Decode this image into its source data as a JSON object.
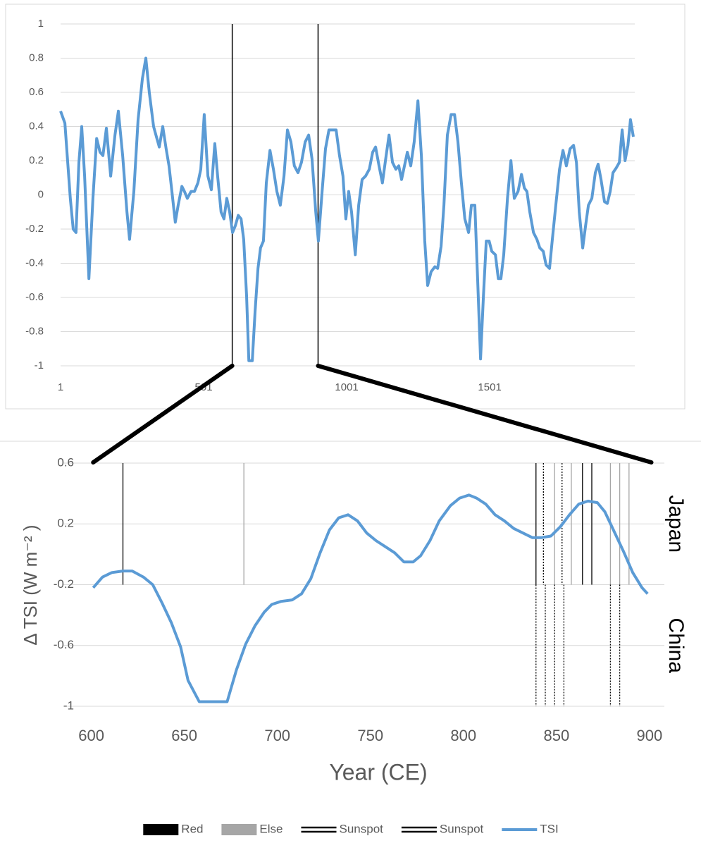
{
  "chart_data": [
    {
      "type": "line",
      "x": [
        1,
        16,
        35,
        45,
        55,
        65,
        75,
        85,
        100,
        114,
        127,
        139,
        149,
        161,
        176,
        191,
        203,
        218,
        233,
        242,
        257,
        272,
        287,
        299,
        311,
        326,
        336,
        346,
        358,
        370,
        380,
        390,
        402,
        412,
        425,
        434,
        444,
        457,
        469,
        481,
        491,
        503,
        516,
        528,
        540,
        550,
        562,
        572,
        582,
        592,
        602,
        612,
        622,
        632,
        641,
        651,
        659,
        671,
        681,
        691,
        700,
        710,
        720,
        733,
        745,
        757,
        769,
        782,
        794,
        806,
        818,
        831,
        843,
        856,
        868,
        880,
        893,
        902,
        915,
        927,
        939,
        951,
        964,
        976,
        988,
        998,
        1008,
        1018,
        1031,
        1043,
        1055,
        1067,
        1080,
        1092,
        1102,
        1114,
        1126,
        1139,
        1149,
        1161,
        1173,
        1183,
        1193,
        1203,
        1213,
        1225,
        1237,
        1250,
        1262,
        1274,
        1284,
        1296,
        1309,
        1319,
        1331,
        1341,
        1353,
        1366,
        1378,
        1390,
        1402,
        1414,
        1427,
        1437,
        1449,
        1459,
        1469,
        1479,
        1489,
        1499,
        1508,
        1521,
        1531,
        1540,
        1550,
        1563,
        1575,
        1587,
        1600,
        1612,
        1622,
        1631,
        1641,
        1654,
        1666,
        1676,
        1688,
        1698,
        1710,
        1720,
        1732,
        1745,
        1757,
        1769,
        1782,
        1794,
        1804,
        1814,
        1826,
        1836,
        1846,
        1858,
        1870,
        1880,
        1890,
        1902,
        1912,
        1922,
        1932,
        1944,
        1954,
        1964,
        1974,
        1984,
        1993,
        2003
      ],
      "series": [
        {
          "color": "#5b9bd5",
          "values": [
            0.49,
            0.42,
            -0.02,
            -0.2,
            -0.22,
            0.19,
            0.4,
            0.11,
            -0.49,
            -0.02,
            0.33,
            0.25,
            0.23,
            0.39,
            0.11,
            0.35,
            0.49,
            0.23,
            -0.1,
            -0.26,
            0.02,
            0.44,
            0.68,
            0.8,
            0.6,
            0.4,
            0.34,
            0.28,
            0.4,
            0.27,
            0.17,
            0.02,
            -0.16,
            -0.06,
            0.05,
            0.02,
            -0.02,
            0.02,
            0.02,
            0.07,
            0.15,
            0.47,
            0.11,
            0.03,
            0.3,
            0.11,
            -0.1,
            -0.14,
            -0.02,
            -0.1,
            -0.22,
            -0.18,
            -0.12,
            -0.14,
            -0.26,
            -0.59,
            -0.97,
            -0.97,
            -0.68,
            -0.43,
            -0.31,
            -0.27,
            0.07,
            0.26,
            0.15,
            0.02,
            -0.06,
            0.11,
            0.38,
            0.31,
            0.17,
            0.13,
            0.19,
            0.31,
            0.35,
            0.21,
            -0.1,
            -0.27,
            0.02,
            0.27,
            0.38,
            0.38,
            0.38,
            0.23,
            0.11,
            -0.14,
            0.02,
            -0.1,
            -0.35,
            -0.06,
            0.09,
            0.11,
            0.15,
            0.25,
            0.28,
            0.17,
            0.07,
            0.23,
            0.35,
            0.19,
            0.15,
            0.17,
            0.09,
            0.17,
            0.25,
            0.17,
            0.31,
            0.55,
            0.23,
            -0.27,
            -0.53,
            -0.45,
            -0.42,
            -0.43,
            -0.3,
            -0.06,
            0.35,
            0.47,
            0.47,
            0.31,
            0.07,
            -0.14,
            -0.22,
            -0.06,
            -0.06,
            -0.51,
            -0.96,
            -0.59,
            -0.27,
            -0.27,
            -0.33,
            -0.35,
            -0.49,
            -0.49,
            -0.35,
            -0.02,
            0.2,
            -0.02,
            0.02,
            0.12,
            0.04,
            0.02,
            -0.1,
            -0.22,
            -0.26,
            -0.31,
            -0.33,
            -0.41,
            -0.43,
            -0.26,
            -0.06,
            0.15,
            0.26,
            0.17,
            0.27,
            0.29,
            0.19,
            -0.1,
            -0.31,
            -0.18,
            -0.06,
            -0.02,
            0.13,
            0.18,
            0.09,
            -0.04,
            -0.05,
            0.02,
            0.13,
            0.16,
            0.19,
            0.38,
            0.2,
            0.29,
            0.44,
            0.34
          ]
        }
      ],
      "xlim": [
        1,
        2008
      ],
      "xticks": [
        1,
        501,
        1001,
        1501
      ],
      "ylim": [
        -1,
        1
      ],
      "yticks": [
        1,
        0.8,
        0.6,
        0.4,
        0.2,
        0,
        -0.2,
        -0.4,
        -0.6,
        -0.8,
        -1
      ],
      "grid": true,
      "zoom": [
        601,
        901
      ]
    },
    {
      "type": "line",
      "x_label": "Year (CE)",
      "y_label": "Δ TSI (W m⁻² )",
      "x": [
        601,
        606,
        611,
        617,
        622,
        628,
        633,
        638,
        643,
        648,
        652,
        658,
        663,
        668,
        673,
        678,
        683,
        688,
        693,
        697,
        702,
        708,
        713,
        718,
        723,
        728,
        733,
        738,
        743,
        748,
        753,
        758,
        763,
        768,
        773,
        777,
        782,
        787,
        793,
        798,
        803,
        807,
        812,
        817,
        822,
        827,
        832,
        837,
        842,
        847,
        852,
        857,
        862,
        867,
        872,
        876,
        881,
        886,
        891,
        896,
        899
      ],
      "bands": [
        {
          "label": "Japan",
          "yrange": [
            -0.2,
            0.6
          ]
        },
        {
          "label": "China",
          "yrange": [
            -1,
            -0.2
          ]
        }
      ],
      "series": [
        {
          "name": "Red",
          "color": "#000000",
          "style": "vline",
          "band": 0,
          "x": [
            617,
            839,
            864,
            869
          ]
        },
        {
          "name": "Else",
          "color": "#a6a6a6",
          "style": "vline",
          "band": 0,
          "x": [
            682,
            849,
            858,
            879,
            884,
            889
          ]
        },
        {
          "name": "Sunspot",
          "color": "#000000",
          "style": "dashed-vline",
          "band": 0,
          "x": [
            843,
            853
          ]
        },
        {
          "name": "Sunspot",
          "color": "#000000",
          "style": "dashed-vline",
          "band": 1,
          "x": [
            839,
            844,
            849,
            854,
            879,
            884
          ]
        },
        {
          "name": "TSI",
          "color": "#5b9bd5",
          "style": "line",
          "values": [
            -0.22,
            -0.15,
            -0.12,
            -0.11,
            -0.11,
            -0.15,
            -0.2,
            -0.32,
            -0.45,
            -0.61,
            -0.83,
            -0.97,
            -0.97,
            -0.97,
            -0.97,
            -0.76,
            -0.59,
            -0.47,
            -0.38,
            -0.33,
            -0.31,
            -0.3,
            -0.26,
            -0.16,
            0.01,
            0.16,
            0.24,
            0.26,
            0.22,
            0.14,
            0.09,
            0.05,
            0.01,
            -0.05,
            -0.05,
            -0.01,
            0.09,
            0.22,
            0.32,
            0.37,
            0.39,
            0.37,
            0.33,
            0.26,
            0.22,
            0.17,
            0.14,
            0.11,
            0.11,
            0.12,
            0.18,
            0.26,
            0.33,
            0.35,
            0.34,
            0.28,
            0.15,
            0.02,
            -0.12,
            -0.22,
            -0.26
          ]
        }
      ],
      "xlim": [
        585,
        908
      ],
      "xticks": [
        600,
        650,
        700,
        750,
        800,
        850,
        900
      ],
      "ylim": [
        -1,
        0.6
      ],
      "yticks": [
        0.6,
        0.2,
        -0.2,
        -0.6,
        -1
      ],
      "grid": true
    }
  ]
}
